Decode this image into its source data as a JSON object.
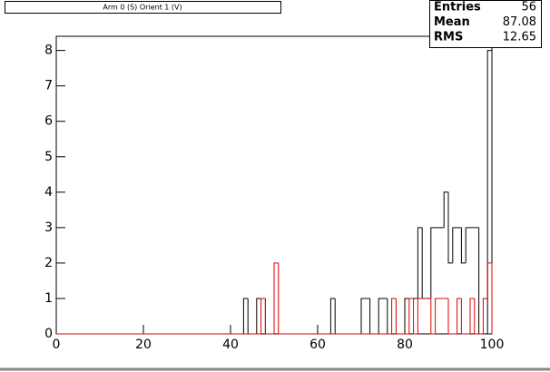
{
  "chart_data": {
    "type": "histogram",
    "title": "Arm 0 (S) Orient 1 (V)",
    "bins": [
      0,
      1,
      2,
      3,
      4,
      5,
      6,
      7,
      8,
      9,
      10,
      11,
      12,
      13,
      14,
      15,
      16,
      17,
      18,
      19,
      20,
      21,
      22,
      23,
      24,
      25,
      26,
      27,
      28,
      29,
      30,
      31,
      32,
      33,
      34,
      35,
      36,
      37,
      38,
      39,
      40,
      41,
      42,
      43,
      44,
      45,
      46,
      47,
      48,
      49,
      50,
      51,
      52,
      53,
      54,
      55,
      56,
      57,
      58,
      59,
      60,
      61,
      62,
      63,
      64,
      65,
      66,
      67,
      68,
      69,
      70,
      71,
      72,
      73,
      74,
      75,
      76,
      77,
      78,
      79,
      80,
      81,
      82,
      83,
      84,
      85,
      86,
      87,
      88,
      89,
      90,
      91,
      92,
      93,
      94,
      95,
      96,
      97,
      98,
      99,
      100
    ],
    "series": [
      {
        "color": "#000000",
        "values": [
          0,
          0,
          0,
          0,
          0,
          0,
          0,
          0,
          0,
          0,
          0,
          0,
          0,
          0,
          0,
          0,
          0,
          0,
          0,
          0,
          0,
          0,
          0,
          0,
          0,
          0,
          0,
          0,
          0,
          0,
          0,
          0,
          0,
          0,
          0,
          0,
          0,
          0,
          0,
          0,
          0,
          0,
          0,
          1,
          0,
          0,
          1,
          1,
          0,
          0,
          0,
          0,
          0,
          0,
          0,
          0,
          0,
          0,
          0,
          0,
          0,
          0,
          0,
          1,
          0,
          0,
          0,
          0,
          0,
          0,
          1,
          1,
          0,
          0,
          1,
          1,
          0,
          0,
          0,
          0,
          1,
          1,
          1,
          3,
          1,
          1,
          3,
          3,
          3,
          4,
          2,
          3,
          3,
          2,
          3,
          3,
          3,
          0,
          0,
          8
        ]
      },
      {
        "color": "#dd0000",
        "values": [
          0,
          0,
          0,
          0,
          0,
          0,
          0,
          0,
          0,
          0,
          0,
          0,
          0,
          0,
          0,
          0,
          0,
          0,
          0,
          0,
          0,
          0,
          0,
          0,
          0,
          0,
          0,
          0,
          0,
          0,
          0,
          0,
          0,
          0,
          0,
          0,
          0,
          0,
          0,
          0,
          0,
          0,
          0,
          0,
          0,
          0,
          0,
          1,
          0,
          0,
          2,
          0,
          0,
          0,
          0,
          0,
          0,
          0,
          0,
          0,
          0,
          0,
          0,
          0,
          0,
          0,
          0,
          0,
          0,
          0,
          0,
          0,
          0,
          0,
          0,
          0,
          0,
          1,
          0,
          0,
          0,
          1,
          0,
          1,
          1,
          1,
          0,
          1,
          1,
          1,
          0,
          0,
          1,
          0,
          0,
          1,
          0,
          0,
          1,
          2
        ]
      }
    ],
    "xlim": [
      0,
      100
    ],
    "xticks": [
      0,
      20,
      40,
      60,
      80,
      100
    ],
    "ylim": [
      0,
      8.4
    ],
    "yticks": [
      0,
      1,
      2,
      3,
      4,
      5,
      6,
      7,
      8
    ],
    "stats": [
      {
        "label": "Entries",
        "value": 56
      },
      {
        "label": "Mean",
        "value": 87.08
      },
      {
        "label": "RMS",
        "value": 12.65
      }
    ]
  }
}
